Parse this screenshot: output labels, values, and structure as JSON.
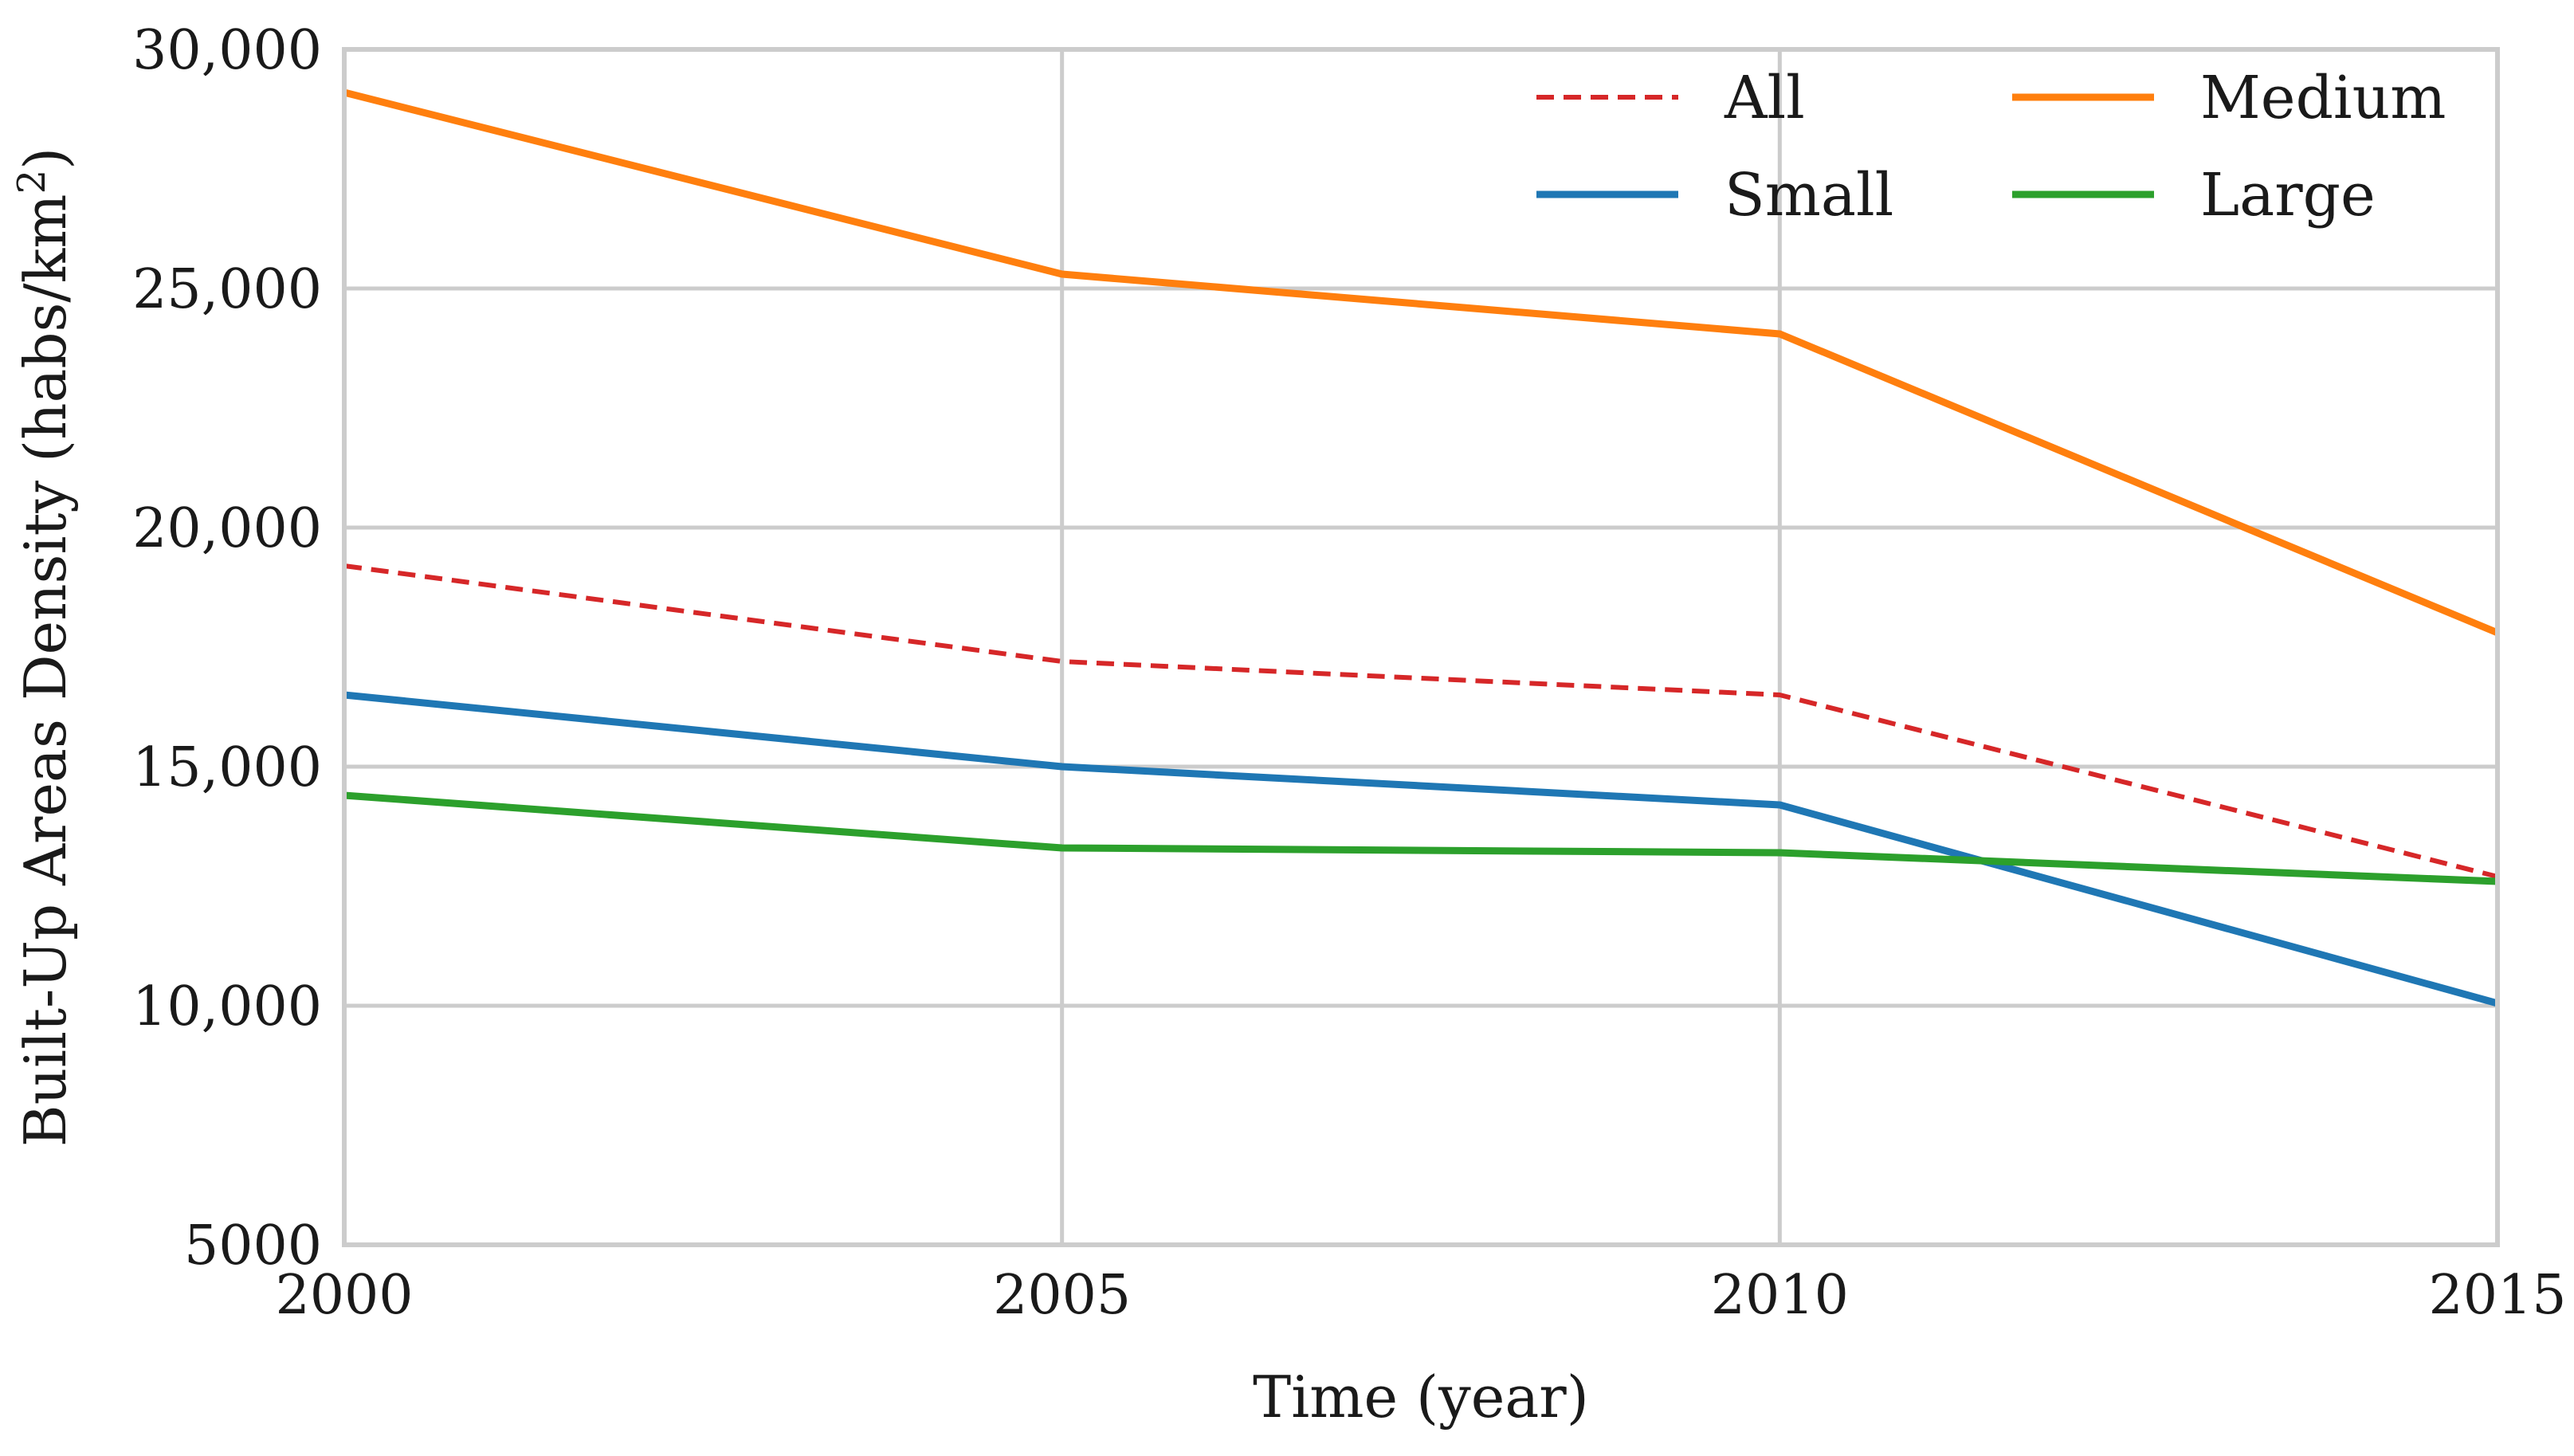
{
  "chart_data": {
    "type": "line",
    "title": "",
    "xlabel": "Time (year)",
    "ylabel": "Built-Up Areas Density (habs/km",
    "ylabel_superscript": "2",
    "ylabel_close": ")",
    "x": [
      2000,
      2005,
      2010,
      2015
    ],
    "xlim": [
      2000,
      2015
    ],
    "ylim": [
      5000,
      30000
    ],
    "x_ticks": [
      "2000",
      "2005",
      "2010",
      "2015"
    ],
    "y_ticks": [
      {
        "value": 5000,
        "label": "5000"
      },
      {
        "value": 10000,
        "label": "10,000"
      },
      {
        "value": 15000,
        "label": "15,000"
      },
      {
        "value": 20000,
        "label": "20,000"
      },
      {
        "value": 25000,
        "label": "25,000"
      },
      {
        "value": 30000,
        "label": "30,000"
      }
    ],
    "grid": true,
    "legend_position": "top-right",
    "series": [
      {
        "name": "All",
        "color": "#d62728",
        "style": "dashed",
        "values": [
          19200,
          17200,
          16500,
          12700
        ]
      },
      {
        "name": "Medium",
        "color": "#ff7f0e",
        "style": "solid",
        "values": [
          29100,
          25300,
          24050,
          17800
        ]
      },
      {
        "name": "Small",
        "color": "#1f77b4",
        "style": "solid",
        "values": [
          16500,
          15000,
          14200,
          10050
        ]
      },
      {
        "name": "Large",
        "color": "#2ca02c",
        "style": "solid",
        "values": [
          14400,
          13300,
          13200,
          12600
        ]
      }
    ]
  }
}
